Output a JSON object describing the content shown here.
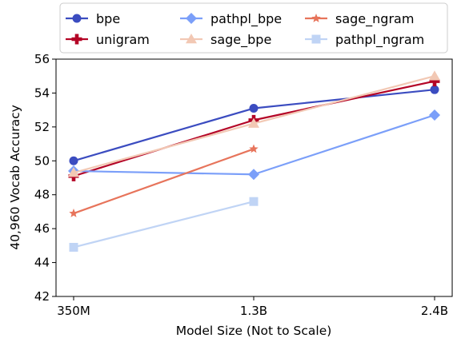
{
  "chart_data": {
    "type": "line",
    "title": "",
    "xlabel": "Model Size (Not to Scale)",
    "ylabel": "40,960 Vocab Accuracy",
    "categories": [
      "350M",
      "1.3B",
      "2.4B"
    ],
    "ylim": [
      42,
      56
    ],
    "yticks": [
      42,
      44,
      46,
      48,
      50,
      52,
      54,
      56
    ],
    "grid": false,
    "legend_position": "top",
    "legend_columns": 3,
    "series": [
      {
        "name": "bpe",
        "color": "#3b4cc0",
        "marker": "circle",
        "values": [
          50.0,
          53.1,
          54.2
        ]
      },
      {
        "name": "unigram",
        "color": "#b40426",
        "marker": "plus",
        "values": [
          49.1,
          52.4,
          54.7
        ]
      },
      {
        "name": "pathpl_bpe",
        "color": "#7b9ff9",
        "marker": "diamond",
        "values": [
          49.4,
          49.2,
          52.7
        ]
      },
      {
        "name": "sage_bpe",
        "color": "#f2c8b4",
        "marker": "triangle",
        "values": [
          49.3,
          52.2,
          55.0
        ]
      },
      {
        "name": "sage_ngram",
        "color": "#e7745b",
        "marker": "star",
        "values": [
          46.9,
          50.7,
          null
        ]
      },
      {
        "name": "pathpl_ngram",
        "color": "#c0d4f5",
        "marker": "square",
        "values": [
          44.9,
          47.6,
          null
        ]
      }
    ]
  }
}
